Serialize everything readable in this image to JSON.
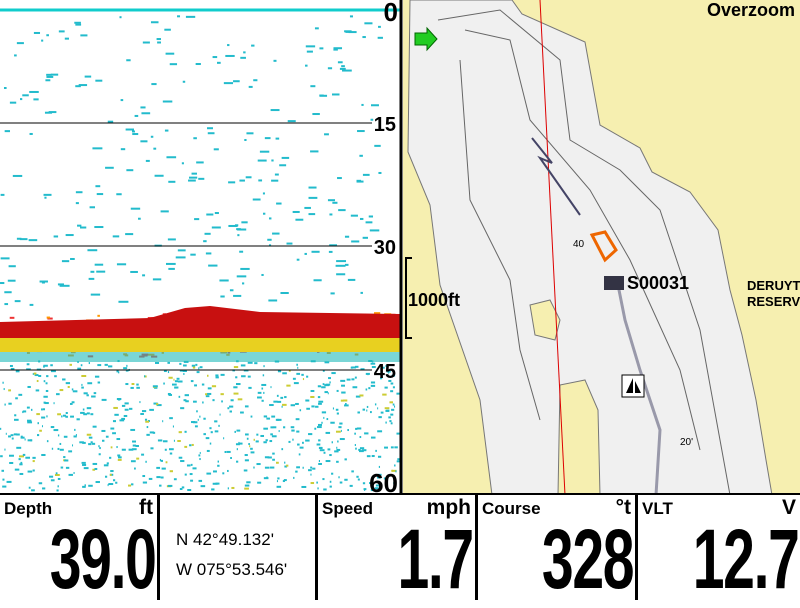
{
  "sonar": {
    "depth_scale": [
      "0",
      "15",
      "30",
      "45",
      "60"
    ]
  },
  "map": {
    "mode": "Overzoom",
    "scale": "1000ft",
    "waypoint": "S00031",
    "contours": [
      "40",
      "20'"
    ],
    "place": [
      "DERUYT",
      "RESERV"
    ]
  },
  "readouts": [
    {
      "label": "Depth",
      "unit": "ft",
      "value": "39.0"
    },
    {
      "label": "Speed",
      "unit": "mph",
      "value": "1.7"
    },
    {
      "label": "Course",
      "unit": "°t",
      "value": "328"
    },
    {
      "label": "VLT",
      "unit": "V",
      "value": "12.7"
    }
  ],
  "position": {
    "lat": "N 42°49.132'",
    "lon": "W 075°53.546'"
  }
}
